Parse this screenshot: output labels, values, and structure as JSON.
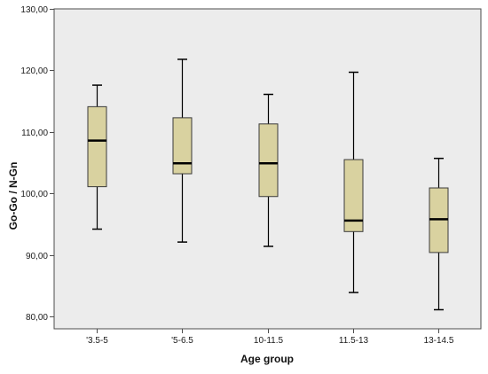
{
  "chart_data": {
    "type": "boxplot",
    "title": "",
    "xlabel": "Age group",
    "ylabel": "Go-Go / N-Gn",
    "ylim": [
      78,
      130
    ],
    "yticks": [
      80,
      90,
      100,
      110,
      120,
      130
    ],
    "ytick_labels": [
      "80,00",
      "90,00",
      "100,00",
      "110,00",
      "120,00",
      "130,00"
    ],
    "grid": false,
    "categories": [
      "'3.5-5",
      "'5-6.5",
      "10-11.5",
      "11.5-13",
      "13-14.5"
    ],
    "boxes": [
      {
        "whisker_low": 94.2,
        "q1": 101.1,
        "median": 108.6,
        "q3": 114.1,
        "whisker_high": 117.6
      },
      {
        "whisker_low": 92.1,
        "q1": 103.2,
        "median": 104.9,
        "q3": 112.3,
        "whisker_high": 121.8
      },
      {
        "whisker_low": 91.4,
        "q1": 99.5,
        "median": 104.9,
        "q3": 111.3,
        "whisker_high": 116.1
      },
      {
        "whisker_low": 83.9,
        "q1": 93.8,
        "median": 95.6,
        "q3": 105.5,
        "whisker_high": 119.7
      },
      {
        "whisker_low": 81.1,
        "q1": 90.4,
        "median": 95.8,
        "q3": 100.9,
        "whisker_high": 105.7
      }
    ],
    "colors": {
      "box_fill": "#d9d2a0",
      "box_stroke": "#3a3a3a",
      "plot_background": "#ececec",
      "frame": "#4d4d4d",
      "median": "#000000"
    }
  }
}
